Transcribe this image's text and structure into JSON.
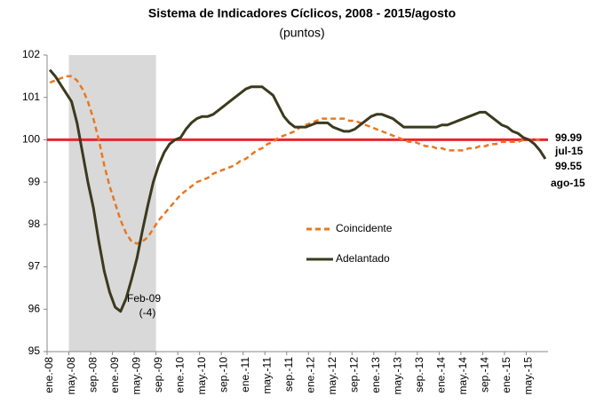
{
  "chart_data": {
    "type": "line",
    "title": "Sistema de Indicadores Cíclicos, 2008 - 2015/agosto",
    "subtitle": "(puntos)",
    "categories": [
      "ene.-08",
      null,
      null,
      null,
      "may.-08",
      null,
      null,
      null,
      "sep.-08",
      null,
      null,
      null,
      "ene.-09",
      null,
      null,
      null,
      "may.-09",
      null,
      null,
      null,
      "sep.-09",
      null,
      null,
      null,
      "ene.-10",
      null,
      null,
      null,
      "may.-10",
      null,
      null,
      null,
      "sep.-10",
      null,
      null,
      null,
      "ene.-11",
      null,
      null,
      null,
      "may.-11",
      null,
      null,
      null,
      "sep.-11",
      null,
      null,
      null,
      "ene.-12",
      null,
      null,
      null,
      "may.-12",
      null,
      null,
      null,
      "sep.-12",
      null,
      null,
      null,
      "ene.-13",
      null,
      null,
      null,
      "may.-13",
      null,
      null,
      null,
      "sep.-13",
      null,
      null,
      null,
      "ene.-14",
      null,
      null,
      null,
      "may.-14",
      null,
      null,
      null,
      "sep.-14",
      null,
      null,
      null,
      "ene.-15",
      null,
      null,
      null,
      "may.-15",
      null,
      null,
      null
    ],
    "series": [
      {
        "name": "Coincidente",
        "color": "#e87722",
        "dashed": true,
        "values": [
          101.35,
          101.4,
          101.45,
          101.5,
          101.5,
          101.4,
          101.2,
          100.9,
          100.5,
          100.0,
          99.4,
          98.9,
          98.5,
          98.1,
          97.8,
          97.6,
          97.55,
          97.6,
          97.7,
          97.9,
          98.1,
          98.25,
          98.4,
          98.55,
          98.7,
          98.8,
          98.9,
          99.0,
          99.05,
          99.1,
          99.2,
          99.25,
          99.3,
          99.35,
          99.4,
          99.5,
          99.55,
          99.65,
          99.75,
          99.8,
          99.9,
          99.95,
          100.05,
          100.1,
          100.15,
          100.2,
          100.3,
          100.35,
          100.4,
          100.45,
          100.5,
          100.5,
          100.5,
          100.5,
          100.5,
          100.45,
          100.45,
          100.4,
          100.35,
          100.3,
          100.25,
          100.2,
          100.15,
          100.1,
          100.05,
          100.0,
          99.95,
          99.95,
          99.9,
          99.85,
          99.85,
          99.8,
          99.8,
          99.75,
          99.75,
          99.75,
          99.75,
          99.8,
          99.8,
          99.85,
          99.85,
          99.9,
          99.9,
          99.95,
          99.95,
          99.95,
          99.95,
          100.0,
          100.0,
          100.0,
          99.99,
          null
        ]
      },
      {
        "name": "Adelantado",
        "color": "#3b3a1e",
        "dashed": false,
        "values": [
          101.65,
          101.5,
          101.3,
          101.1,
          100.9,
          100.4,
          99.7,
          99.0,
          98.4,
          97.6,
          96.9,
          96.4,
          96.05,
          95.95,
          96.25,
          96.7,
          97.2,
          97.85,
          98.45,
          99.0,
          99.4,
          99.7,
          99.9,
          100.0,
          100.05,
          100.25,
          100.4,
          100.5,
          100.55,
          100.55,
          100.6,
          100.7,
          100.8,
          100.9,
          101.0,
          101.1,
          101.2,
          101.25,
          101.25,
          101.25,
          101.15,
          101.05,
          100.8,
          100.55,
          100.4,
          100.3,
          100.3,
          100.3,
          100.35,
          100.4,
          100.4,
          100.4,
          100.3,
          100.25,
          100.2,
          100.2,
          100.25,
          100.35,
          100.45,
          100.55,
          100.6,
          100.6,
          100.55,
          100.5,
          100.4,
          100.3,
          100.3,
          100.3,
          100.3,
          100.3,
          100.3,
          100.3,
          100.35,
          100.35,
          100.4,
          100.45,
          100.5,
          100.55,
          100.6,
          100.65,
          100.65,
          100.55,
          100.45,
          100.35,
          100.3,
          100.2,
          100.15,
          100.05,
          100.0,
          99.9,
          99.75,
          99.55
        ]
      }
    ],
    "ylim": [
      95,
      102
    ],
    "yticks": [
      95,
      96,
      97,
      98,
      99,
      100,
      101,
      102
    ],
    "reference_line": {
      "value": 100,
      "color": "#e8262a"
    },
    "shaded_region": {
      "from": 4,
      "to": 20,
      "color": "#d9d9d9"
    },
    "annotations": {
      "trough": [
        "Feb-09",
        "(-4)"
      ],
      "coincidente_end": [
        "99.99",
        "jul-15"
      ],
      "adelantado_end": [
        "99.55",
        "ago-15"
      ]
    }
  }
}
